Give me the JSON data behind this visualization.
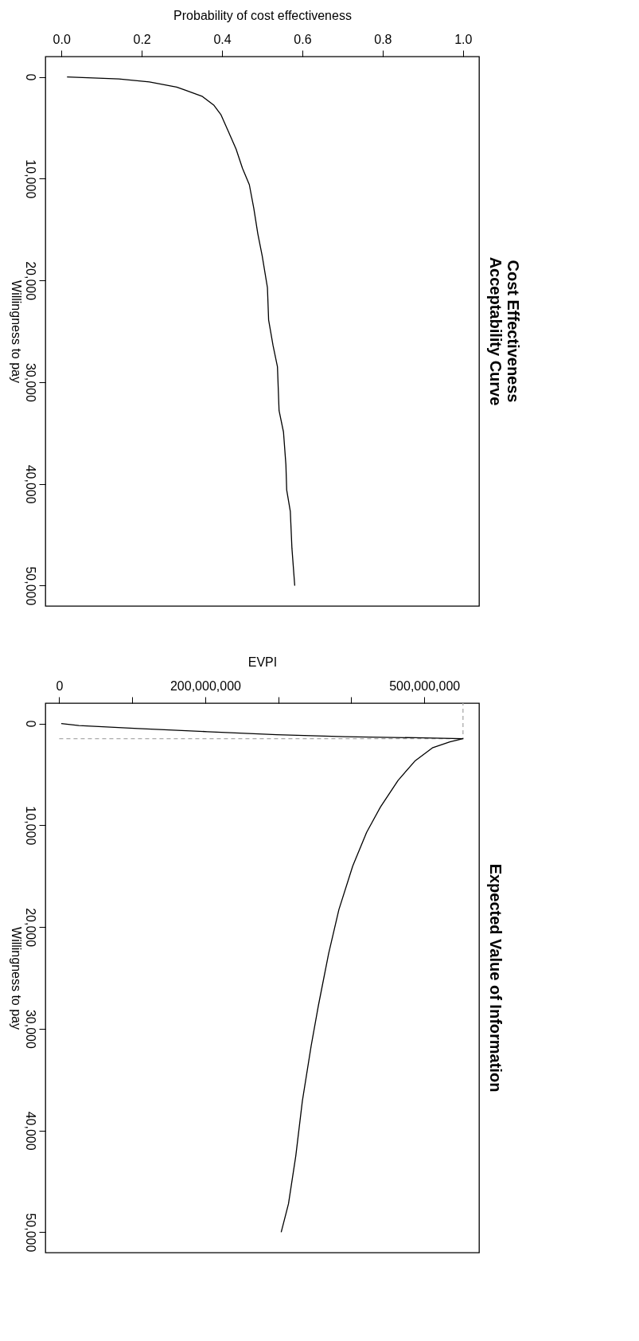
{
  "chart_data": [
    {
      "type": "line",
      "title": "Cost Effectiveness\nAcceptability Curve",
      "xlabel": "Probability of cost effectiveness",
      "ylabel": "Willingness to pay",
      "xlim": [
        -0.04,
        1.04
      ],
      "xticks": [
        {
          "value": 0,
          "label": "0.0"
        },
        {
          "value": 0.2,
          "label": "0.2"
        },
        {
          "value": 0.4,
          "label": "0.4"
        },
        {
          "value": 0.6,
          "label": "0.6"
        },
        {
          "value": 0.8,
          "label": "0.8"
        },
        {
          "value": 1,
          "label": "1.0"
        }
      ],
      "ylim": [
        52000,
        -2000
      ],
      "yticks": [
        0,
        {
          "value": 10000,
          "label": "10,000"
        },
        {
          "value": 20000,
          "label": "20,000"
        },
        {
          "value": 30000,
          "label": "30,000"
        },
        {
          "value": 40000,
          "label": "40,000"
        },
        {
          "value": 50000,
          "label": "50,000"
        }
      ],
      "grid": false,
      "series": [
        {
          "color": "#000000",
          "x": [
            0.014,
            0.143,
            0.219,
            0.287,
            0.308,
            0.35,
            0.38,
            0.397,
            0.415,
            0.435,
            0.451,
            0.468,
            0.479,
            0.489,
            0.5,
            0.513,
            0.516,
            0.527,
            0.538,
            0.542,
            0.553,
            0.559,
            0.561,
            0.57,
            0.574,
            0.581
          ],
          "values": [
            0,
            200,
            500,
            1000,
            1300,
            1900,
            2800,
            3700,
            5300,
            7100,
            9000,
            10600,
            12900,
            15400,
            17600,
            20700,
            23900,
            26400,
            28500,
            32800,
            34900,
            38100,
            40600,
            42700,
            46300,
            50000
          ]
        }
      ]
    },
    {
      "type": "line",
      "title": "Expected Value of Information",
      "xlabel": "EVPI",
      "ylabel": "Willingness to pay",
      "xlim": [
        -19000000,
        575000000
      ],
      "xticks": [
        0,
        {
          "value": 100000000,
          "label": null
        },
        {
          "value": 200000000,
          "label": "200,000,000"
        },
        {
          "value": 300000000,
          "label": null
        },
        {
          "value": 400000000,
          "label": null
        },
        {
          "value": 500000000,
          "label": "500,000,000"
        }
      ],
      "ylim": [
        52000,
        -2000
      ],
      "yticks": [
        0,
        {
          "value": 10000,
          "label": "10,000"
        },
        {
          "value": 20000,
          "label": "20,000"
        },
        {
          "value": 30000,
          "label": "30,000"
        },
        {
          "value": 40000,
          "label": "40,000"
        },
        {
          "value": 50000,
          "label": "50,000"
        }
      ],
      "grid": false,
      "series": [
        {
          "color": "#aaaaaa",
          "line_style": "dashed",
          "x": [
            0,
            553000000,
            553000000
          ],
          "values": [
            1500,
            1500,
            -2000
          ]
        },
        {
          "color": "#000000",
          "x": [
            2800000,
            27000000,
            108000000,
            203000000,
            298000000,
            392000000,
            487000000,
            553000000,
            535000000,
            511000000,
            487000000,
            464000000,
            440000000,
            421000000,
            402000000,
            383000000,
            369000000,
            355000000,
            345000000,
            333000000,
            324000000,
            314000000,
            304000000
          ],
          "values": [
            0,
            200,
            500,
            800,
            1100,
            1300,
            1400,
            1500,
            1800,
            2400,
            3700,
            5600,
            8200,
            10700,
            14000,
            18300,
            22600,
            27700,
            31700,
            37100,
            42500,
            47200,
            50000
          ]
        }
      ]
    }
  ]
}
